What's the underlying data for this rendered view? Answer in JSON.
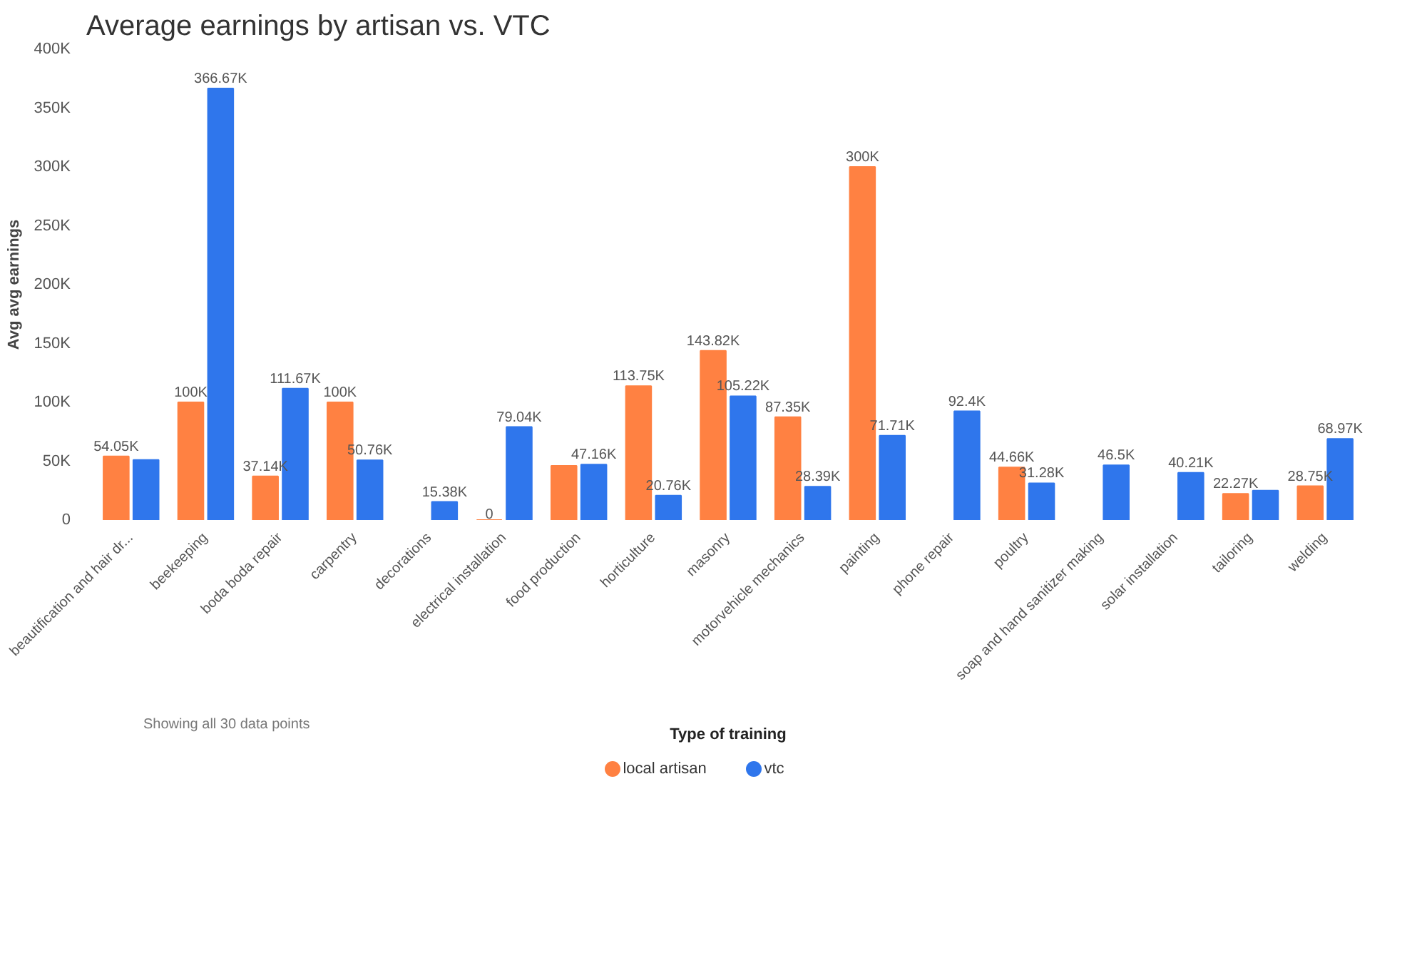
{
  "chart_data": {
    "type": "bar",
    "title": "Average earnings by artisan vs. VTC",
    "ylabel": "Avg avg earnings",
    "legend_title": "Type of training",
    "categories": [
      "beautification and hair dr...",
      "beekeeping",
      "boda boda repair",
      "carpentry",
      "decorations",
      "electrical installation",
      "food production",
      "horticulture",
      "masonry",
      "motorvehicle mechanics",
      "painting",
      "phone repair",
      "poultry",
      "soap and hand sanitizer making",
      "solar installation",
      "tailoring",
      "welding"
    ],
    "series": [
      {
        "name": "local artisan",
        "color": "#ff8142",
        "values": [
          54050,
          100000,
          37140,
          100000,
          null,
          0,
          46000,
          113750,
          143820,
          87350,
          300000,
          null,
          44660,
          null,
          null,
          22270,
          28750
        ],
        "value_labels": [
          "54.05K",
          "100K",
          "37.14K",
          "100K",
          null,
          "0",
          null,
          "113.75K",
          "143.82K",
          "87.35K",
          "300K",
          null,
          "44.66K",
          null,
          null,
          "22.27K",
          "28.75K"
        ]
      },
      {
        "name": "vtc",
        "color": "#2f76ec",
        "values": [
          51000,
          366670,
          111670,
          50760,
          15380,
          79040,
          47160,
          20760,
          105220,
          28390,
          71710,
          92400,
          31280,
          46500,
          40210,
          25000,
          68970
        ],
        "value_labels": [
          null,
          "366.67K",
          "111.67K",
          "50.76K",
          "15.38K",
          "79.04K",
          "47.16K",
          "20.76K",
          "105.22K",
          "28.39K",
          "71.71K",
          "92.4K",
          "31.28K",
          "46.5K",
          "40.21K",
          null,
          "68.97K"
        ]
      }
    ],
    "ylim": [
      0,
      400000
    ],
    "yticks": [
      {
        "value": 0,
        "label": "0"
      },
      {
        "value": 50000,
        "label": "50K"
      },
      {
        "value": 100000,
        "label": "100K"
      },
      {
        "value": 150000,
        "label": "150K"
      },
      {
        "value": 200000,
        "label": "200K"
      },
      {
        "value": 250000,
        "label": "250K"
      },
      {
        "value": 300000,
        "label": "300K"
      },
      {
        "value": 350000,
        "label": "350K"
      },
      {
        "value": 400000,
        "label": "400K"
      }
    ],
    "grid": false,
    "legend": "bottom",
    "annotations": [
      "Showing all 30 data points"
    ]
  }
}
